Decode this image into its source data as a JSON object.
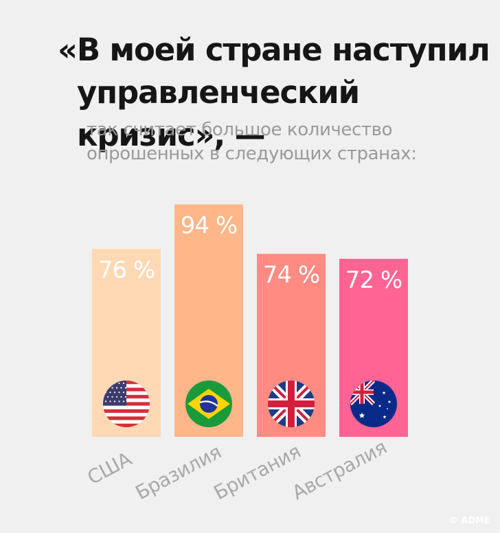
{
  "header": {
    "title_line1": "«В моей стране наступил",
    "title_line2": "управленческий кризис», —",
    "subtitle_line1": "так считает большое количество",
    "subtitle_line2": "опрошенных в следующих странах:"
  },
  "watermark": "© ADME",
  "chart_data": {
    "type": "bar",
    "categories": [
      "США",
      "Бразилия",
      "Британия",
      "Австралия"
    ],
    "values": [
      76,
      94,
      74,
      72
    ],
    "value_labels": [
      "76 %",
      "94 %",
      "74 %",
      "72 %"
    ],
    "unit": "%",
    "ylim": [
      0,
      100
    ],
    "colors": [
      "#ffd8b4",
      "#ffb689",
      "#ff8b82",
      "#ff6495"
    ],
    "flag_icons": [
      "usa-flag-icon",
      "brazil-flag-icon",
      "uk-flag-icon",
      "australia-flag-icon"
    ],
    "grid": false,
    "legend": "none"
  }
}
